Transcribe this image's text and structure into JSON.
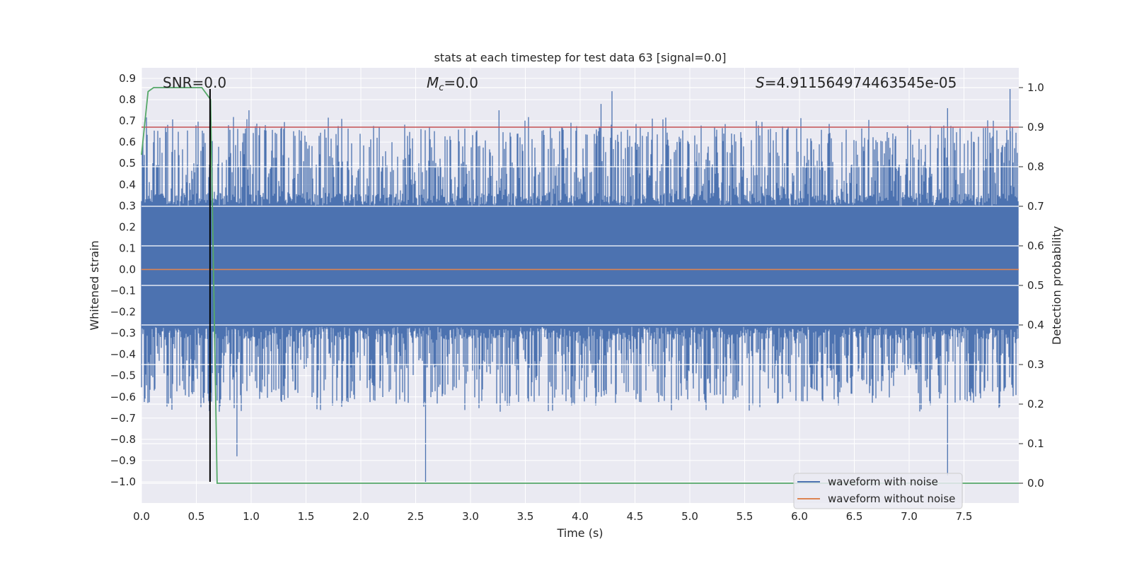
{
  "chart_data": {
    "type": "line",
    "title": "stats at each timestep for test data 63 [signal=0.0]",
    "xlabel": "Time (s)",
    "ylabel": "Whitened strain",
    "y2label": "Detection probability",
    "xlim": [
      0.0,
      8.0
    ],
    "ylim": [
      -1.1,
      0.95
    ],
    "y2lim": [
      -0.05,
      1.05
    ],
    "x_ticks": [
      "0.0",
      "0.5",
      "1.0",
      "1.5",
      "2.0",
      "2.5",
      "3.0",
      "3.5",
      "4.0",
      "4.5",
      "5.0",
      "5.5",
      "6.0",
      "6.5",
      "7.0",
      "7.5"
    ],
    "y_ticks": [
      "0.9",
      "0.8",
      "0.7",
      "0.6",
      "0.5",
      "0.4",
      "0.3",
      "0.2",
      "0.1",
      "0.0",
      "−0.1",
      "−0.2",
      "−0.3",
      "−0.4",
      "−0.5",
      "−0.6",
      "−0.7",
      "−0.8",
      "−0.9",
      "−1.0"
    ],
    "y2_ticks": [
      "1.0",
      "0.9",
      "0.8",
      "0.7",
      "0.6",
      "0.5",
      "0.4",
      "0.3",
      "0.2",
      "0.1",
      "0.0"
    ],
    "grid": true,
    "legend_position": "bottom-right",
    "annotations": {
      "snr": "SNR=0.0",
      "mc_symbol": "M",
      "mc_sub": "c",
      "mc_value": "=0.0",
      "s_symbol": "S",
      "s_value": "=4.911564974463545e-05"
    },
    "series": [
      {
        "name": "waveform with noise",
        "axis": "left",
        "color": "#4c72b0",
        "sample_rate_hz": 2048,
        "noise_envelope": {
          "dense_band": [
            -0.27,
            0.3
          ],
          "typical_peaks": [
            -0.55,
            0.6
          ],
          "extreme_peaks": [
            {
              "x": 0.87,
              "y": -0.88
            },
            {
              "x": 0.98,
              "y": 0.75
            },
            {
              "x": 2.59,
              "y": -1.0
            },
            {
              "x": 3.26,
              "y": 0.75
            },
            {
              "x": 4.19,
              "y": 0.78
            },
            {
              "x": 4.29,
              "y": 0.84
            },
            {
              "x": 7.35,
              "y": -0.97
            },
            {
              "x": 7.35,
              "y": 0.76
            },
            {
              "x": 7.92,
              "y": 0.85
            }
          ]
        }
      },
      {
        "name": "waveform without noise",
        "axis": "left",
        "color": "#dd8452",
        "x": [
          0.0,
          8.0
        ],
        "y": [
          0.0,
          0.0
        ]
      },
      {
        "name": "",
        "axis": "right",
        "color": "#55a868",
        "x": [
          0.0,
          0.06,
          0.11,
          0.2,
          0.3,
          0.4,
          0.5,
          0.55,
          0.63,
          0.69,
          0.75,
          1.0,
          2.0,
          3.0,
          4.0,
          5.0,
          6.0,
          7.0,
          8.0
        ],
        "y": [
          0.83,
          0.99,
          1.0,
          1.0,
          1.0,
          1.0,
          1.0,
          1.0,
          0.97,
          0.0,
          0.0,
          0.0,
          0.0,
          0.0,
          0.0,
          0.0,
          0.0,
          0.0,
          0.0
        ]
      },
      {
        "name": "",
        "axis": "right",
        "color": "#c44e52",
        "x": [
          0.0,
          8.0
        ],
        "y": [
          0.9,
          0.9
        ]
      }
    ],
    "vertical_marker": {
      "x": 0.625,
      "y_from": -1.0,
      "y_to": 0.85,
      "color": "#000000"
    }
  }
}
